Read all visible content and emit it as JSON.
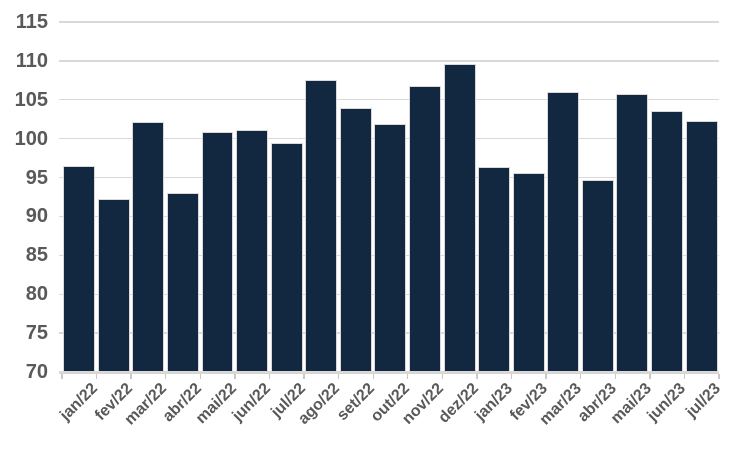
{
  "chart_data": {
    "type": "bar",
    "title": "",
    "xlabel": "",
    "ylabel": "",
    "categories": [
      "jan/22",
      "fev/22",
      "mar/22",
      "abr/22",
      "mai/22",
      "jun/22",
      "jul/22",
      "ago/22",
      "set/22",
      "out/22",
      "nov/22",
      "dez/22",
      "jan/23",
      "fev/23",
      "mar/23",
      "abr/23",
      "mai/23",
      "jun/23",
      "jul/23"
    ],
    "values": [
      96.5,
      92.2,
      102.1,
      93.0,
      100.8,
      101.1,
      99.4,
      107.5,
      103.9,
      101.9,
      106.8,
      109.6,
      96.4,
      95.6,
      106.0,
      94.7,
      105.7,
      103.5,
      102.3
    ],
    "ylim": [
      70,
      115
    ],
    "yticks": [
      70,
      75,
      80,
      85,
      90,
      95,
      100,
      105,
      110,
      115
    ],
    "ytick_step": 5,
    "grid": true,
    "legend": false,
    "colors": {
      "bar_fill": "#122840",
      "bar_border": "#d9d9d9",
      "gridline": "#d9d9d9",
      "axis_line": "#d5d5d5",
      "tick": "#c8c8c8",
      "label": "#595959",
      "background": "#ffffff"
    }
  }
}
